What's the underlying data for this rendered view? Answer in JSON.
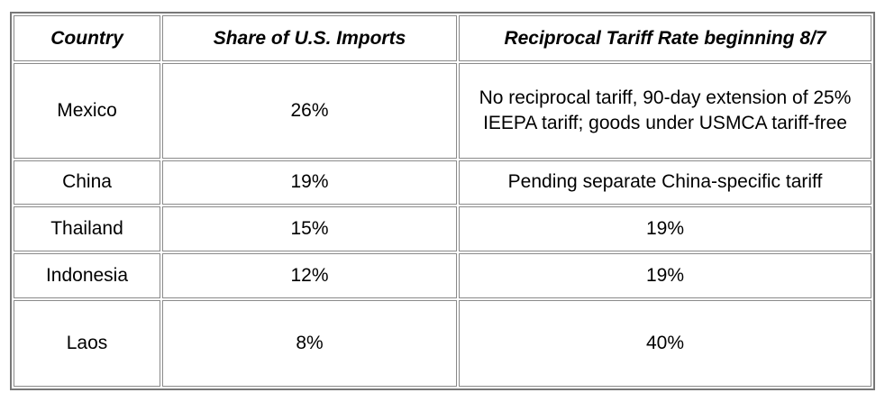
{
  "table": {
    "headers": [
      "Country",
      "Share of U.S. Imports",
      "Reciprocal Tariff Rate beginning 8/7"
    ],
    "rows": [
      {
        "country": "Mexico",
        "share": "26%",
        "rate": "No reciprocal tariff, 90-day extension of 25% IEEPA tariff; goods under USMCA tariff-free"
      },
      {
        "country": "China",
        "share": "19%",
        "rate": "Pending separate China-specific tariff"
      },
      {
        "country": "Thailand",
        "share": "15%",
        "rate": "19%"
      },
      {
        "country": "Indonesia",
        "share": "12%",
        "rate": "19%"
      },
      {
        "country": "Laos",
        "share": "8%",
        "rate": "40%"
      }
    ]
  }
}
